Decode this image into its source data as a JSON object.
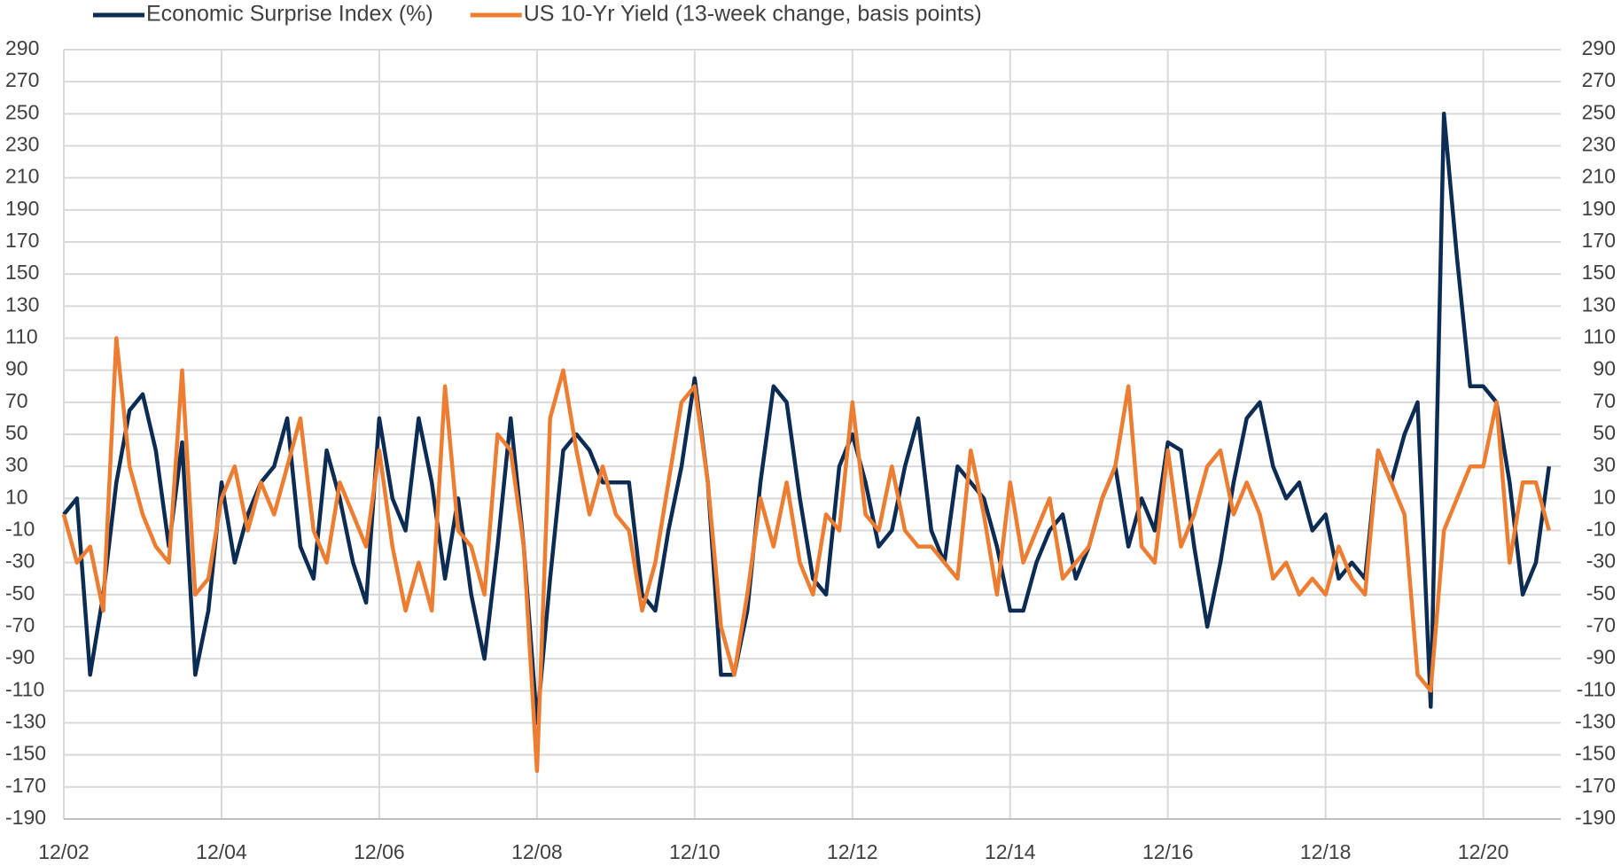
{
  "chart_data": {
    "type": "line",
    "categories": [
      "12/02",
      "02/03",
      "04/03",
      "06/03",
      "08/03",
      "10/03",
      "12/03",
      "02/04",
      "04/04",
      "06/04",
      "08/04",
      "10/04",
      "12/04",
      "02/05",
      "04/05",
      "06/05",
      "08/05",
      "10/05",
      "12/05",
      "02/06",
      "04/06",
      "06/06",
      "08/06",
      "10/06",
      "12/06",
      "02/07",
      "04/07",
      "06/07",
      "08/07",
      "10/07",
      "12/07",
      "02/08",
      "04/08",
      "06/08",
      "08/08",
      "10/08",
      "12/08",
      "02/09",
      "04/09",
      "06/09",
      "08/09",
      "10/09",
      "12/09",
      "02/10",
      "04/10",
      "06/10",
      "08/10",
      "10/10",
      "12/10",
      "02/11",
      "04/11",
      "06/11",
      "08/11",
      "10/11",
      "12/11",
      "02/12",
      "04/12",
      "06/12",
      "08/12",
      "10/12",
      "12/12",
      "02/13",
      "04/13",
      "06/13",
      "08/13",
      "10/13",
      "12/13",
      "02/14",
      "04/14",
      "06/14",
      "08/14",
      "10/14",
      "12/14",
      "02/15",
      "04/15",
      "06/15",
      "08/15",
      "10/15",
      "12/15",
      "02/16",
      "04/16",
      "06/16",
      "08/16",
      "10/16",
      "12/16",
      "02/17",
      "04/17",
      "06/17",
      "08/17",
      "10/17",
      "12/17",
      "02/18",
      "04/18",
      "06/18",
      "08/18",
      "10/18",
      "12/18",
      "02/19",
      "04/19",
      "06/19",
      "08/19",
      "10/19",
      "12/19",
      "02/20",
      "04/20",
      "06/20",
      "08/20",
      "10/20",
      "12/20",
      "02/21",
      "04/21",
      "06/21",
      "08/21",
      "10/21"
    ],
    "series": [
      {
        "name": "Economic Surprise Index (%)",
        "color": "#0d2c54",
        "values": [
          0,
          10,
          -100,
          -50,
          20,
          65,
          75,
          40,
          -20,
          45,
          -100,
          -60,
          20,
          -30,
          0,
          20,
          30,
          60,
          -20,
          -40,
          40,
          10,
          -30,
          -55,
          60,
          10,
          -10,
          60,
          20,
          -40,
          10,
          -50,
          -90,
          -20,
          60,
          -20,
          -130,
          -40,
          40,
          50,
          40,
          20,
          20,
          20,
          -50,
          -60,
          -10,
          30,
          85,
          20,
          -100,
          -100,
          -60,
          20,
          80,
          70,
          10,
          -40,
          -50,
          30,
          50,
          20,
          -20,
          -10,
          30,
          60,
          -10,
          -30,
          30,
          20,
          10,
          -20,
          -60,
          -60,
          -30,
          -10,
          0,
          -40,
          -20,
          10,
          30,
          -20,
          10,
          -10,
          45,
          40,
          -20,
          -70,
          -30,
          20,
          60,
          70,
          30,
          10,
          20,
          -10,
          0,
          -40,
          -30,
          -40,
          40,
          20,
          50,
          70,
          -120,
          250,
          160,
          80,
          80,
          70,
          20,
          -50,
          -30,
          30
        ]
      },
      {
        "name": "US 10-Yr Yield (13-week change, basis points)",
        "color": "#ed7d31",
        "axis": "y2",
        "values": [
          0,
          -30,
          -20,
          -60,
          110,
          30,
          0,
          -20,
          -30,
          90,
          -50,
          -40,
          10,
          30,
          -10,
          20,
          0,
          30,
          60,
          -10,
          -30,
          20,
          0,
          -20,
          40,
          -20,
          -60,
          -30,
          -60,
          80,
          -10,
          -20,
          -50,
          50,
          40,
          -20,
          -160,
          60,
          90,
          40,
          0,
          30,
          0,
          -10,
          -60,
          -30,
          20,
          70,
          80,
          20,
          -70,
          -100,
          -50,
          10,
          -20,
          20,
          -30,
          -50,
          0,
          -10,
          70,
          0,
          -10,
          30,
          -10,
          -20,
          -20,
          -30,
          -40,
          40,
          0,
          -50,
          20,
          -30,
          -10,
          10,
          -40,
          -30,
          -20,
          10,
          30,
          80,
          -20,
          -30,
          40,
          -20,
          0,
          30,
          40,
          0,
          20,
          0,
          -40,
          -30,
          -50,
          -40,
          -50,
          -20,
          -40,
          -50,
          40,
          20,
          0,
          -100,
          -110,
          -10,
          10,
          30,
          30,
          70,
          -30,
          20,
          20,
          -10
        ]
      }
    ],
    "ylim": [
      -190,
      290
    ],
    "yticks": [
      -190,
      -170,
      -150,
      -130,
      -110,
      -90,
      -70,
      -50,
      -30,
      -10,
      10,
      30,
      50,
      70,
      90,
      110,
      130,
      150,
      170,
      190,
      210,
      230,
      250,
      270,
      290
    ],
    "y2lim": [
      -190,
      290
    ],
    "y2ticks": [
      -190,
      -170,
      -150,
      -130,
      -110,
      -90,
      -70,
      -50,
      -30,
      -10,
      10,
      30,
      50,
      70,
      90,
      110,
      130,
      150,
      170,
      190,
      210,
      230,
      250,
      270,
      290
    ],
    "xticks": [
      "12/02",
      "12/04",
      "12/06",
      "12/08",
      "12/10",
      "12/12",
      "12/14",
      "12/16",
      "12/18",
      "12/20"
    ],
    "grid": true,
    "legend": "top-left"
  }
}
